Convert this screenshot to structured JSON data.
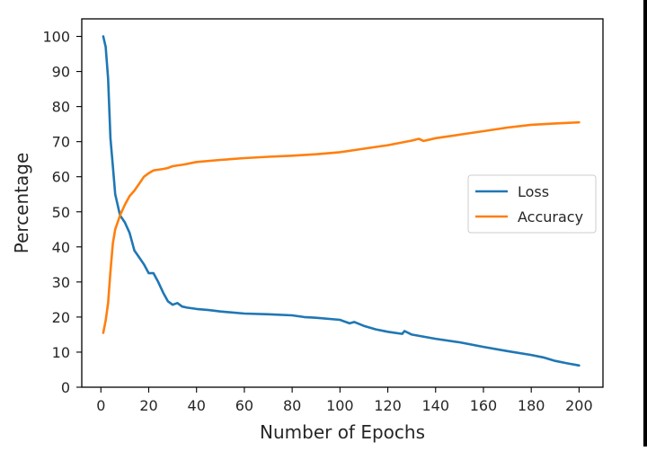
{
  "chart_data": {
    "type": "line",
    "title": "",
    "xlabel": "Number of Epochs",
    "ylabel": "Percentage",
    "xlim": [
      -8,
      210
    ],
    "ylim": [
      0,
      105
    ],
    "xticks": [
      0,
      20,
      40,
      60,
      80,
      100,
      120,
      140,
      160,
      180,
      200
    ],
    "yticks": [
      0,
      10,
      20,
      30,
      40,
      50,
      60,
      70,
      80,
      90,
      100
    ],
    "grid": false,
    "legend_position": "center right",
    "series": [
      {
        "name": "Loss",
        "color": "#1f77b4",
        "x": [
          1,
          2,
          3,
          4,
          5,
          6,
          7,
          8,
          10,
          12,
          14,
          16,
          18,
          20,
          22,
          24,
          26,
          28,
          30,
          32,
          34,
          36,
          40,
          45,
          50,
          60,
          70,
          80,
          85,
          90,
          100,
          104,
          106,
          110,
          115,
          120,
          126,
          127,
          130,
          140,
          150,
          160,
          170,
          180,
          185,
          190,
          195,
          200
        ],
        "y": [
          100,
          97,
          88,
          71,
          63,
          55,
          52,
          49,
          47,
          44,
          39,
          37,
          35,
          32.5,
          32.5,
          30,
          27,
          24.5,
          23.5,
          24,
          23,
          22.7,
          22.3,
          22,
          21.6,
          21,
          20.8,
          20.5,
          20,
          19.8,
          19.2,
          18.2,
          18.6,
          17.5,
          16.5,
          15.8,
          15.2,
          16,
          15,
          13.8,
          12.8,
          11.5,
          10.3,
          9.2,
          8.5,
          7.5,
          6.8,
          6.2
        ]
      },
      {
        "name": "Accuracy",
        "color": "#ff7f0e",
        "x": [
          1,
          2,
          3,
          4,
          5,
          6,
          7,
          8,
          10,
          12,
          14,
          16,
          18,
          20,
          22,
          24,
          26,
          28,
          30,
          35,
          40,
          50,
          60,
          70,
          80,
          90,
          100,
          110,
          120,
          130,
          133,
          135,
          140,
          150,
          160,
          170,
          180,
          190,
          200
        ],
        "y": [
          15.5,
          19,
          24,
          33,
          41,
          45,
          47,
          49,
          52,
          54.5,
          56,
          58,
          60,
          61,
          61.8,
          62,
          62.2,
          62.5,
          63,
          63.5,
          64.2,
          64.8,
          65.3,
          65.7,
          66,
          66.4,
          67,
          68,
          69,
          70.3,
          70.8,
          70.2,
          71,
          72,
          73,
          74,
          74.8,
          75.2,
          75.5
        ]
      }
    ]
  }
}
